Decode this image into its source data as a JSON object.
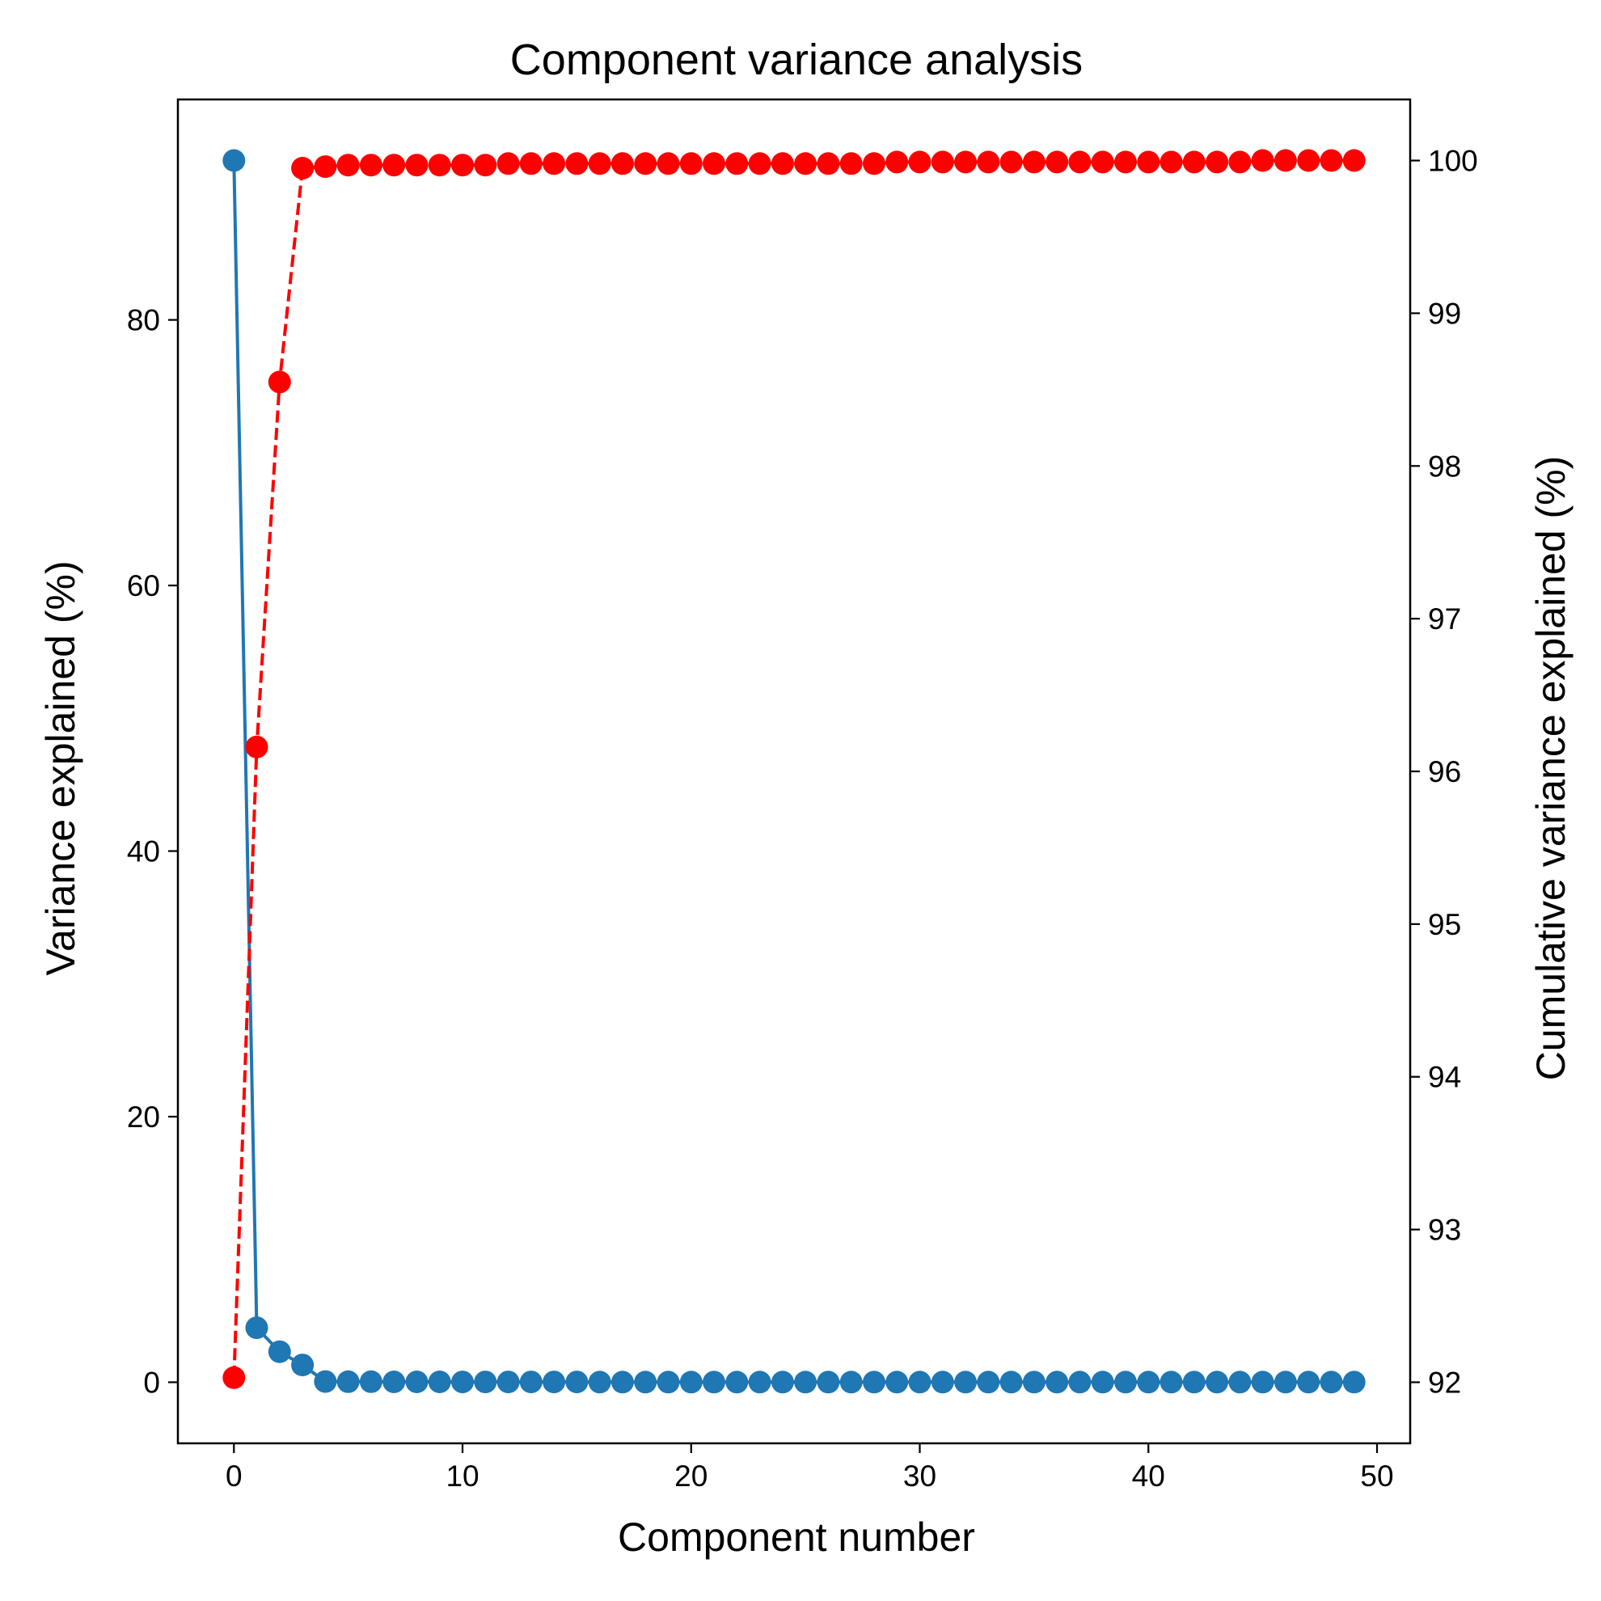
{
  "chart_data": {
    "type": "line",
    "title": "Component variance analysis",
    "xlabel": "Component number",
    "ylabel": "Variance explained (%)",
    "y2label": "Cumulative variance explained (%)",
    "xlim": [
      -2.45,
      51.45
    ],
    "ylim": [
      -4.6,
      96.6
    ],
    "y2lim": [
      91.6,
      100.4
    ],
    "xticks": [
      0,
      10,
      20,
      30,
      40,
      50
    ],
    "yticks": [
      0,
      20,
      40,
      60,
      80
    ],
    "y2ticks": [
      92,
      93,
      94,
      95,
      96,
      97,
      98,
      99,
      100
    ],
    "x": [
      0,
      1,
      2,
      3,
      4,
      5,
      6,
      7,
      8,
      9,
      10,
      11,
      12,
      13,
      14,
      15,
      16,
      17,
      18,
      19,
      20,
      21,
      22,
      23,
      24,
      25,
      26,
      27,
      28,
      29,
      30,
      31,
      32,
      33,
      34,
      35,
      36,
      37,
      38,
      39,
      40,
      41,
      42,
      43,
      44,
      45,
      46,
      47,
      48,
      49
    ],
    "series": [
      {
        "axis": "left",
        "color": "#1f77b4",
        "linestyle": "solid",
        "marker": "circle",
        "values": [
          92.0,
          4.1,
          2.3,
          1.3,
          0.05,
          0.04,
          0.04,
          0.03,
          0.03,
          0.03,
          0.02,
          0.02,
          0.02,
          0.02,
          0.02,
          0.02,
          0.01,
          0.01,
          0.01,
          0.01,
          0.01,
          0.01,
          0.01,
          0.01,
          0.01,
          0.01,
          0.01,
          0.01,
          0.01,
          0.01,
          0.01,
          0.01,
          0.01,
          0.01,
          0.01,
          0.01,
          0.01,
          0.01,
          0.01,
          0.01,
          0.01,
          0.01,
          0.01,
          0.01,
          0.01,
          0.01,
          0.01,
          0.01,
          0.01,
          0.01
        ]
      },
      {
        "axis": "right",
        "color": "#ff0000",
        "linestyle": "dashed",
        "marker": "circle",
        "values": [
          92.03,
          96.16,
          98.55,
          99.95,
          99.96,
          99.97,
          99.97,
          99.97,
          99.97,
          99.97,
          99.97,
          99.97,
          99.98,
          99.98,
          99.98,
          99.98,
          99.98,
          99.98,
          99.98,
          99.98,
          99.98,
          99.98,
          99.98,
          99.98,
          99.98,
          99.98,
          99.98,
          99.98,
          99.98,
          99.99,
          99.99,
          99.99,
          99.99,
          99.99,
          99.99,
          99.99,
          99.99,
          99.99,
          99.99,
          99.99,
          99.99,
          99.99,
          99.99,
          99.99,
          99.99,
          100.0,
          100.0,
          100.0,
          100.0,
          100.0
        ]
      }
    ]
  }
}
